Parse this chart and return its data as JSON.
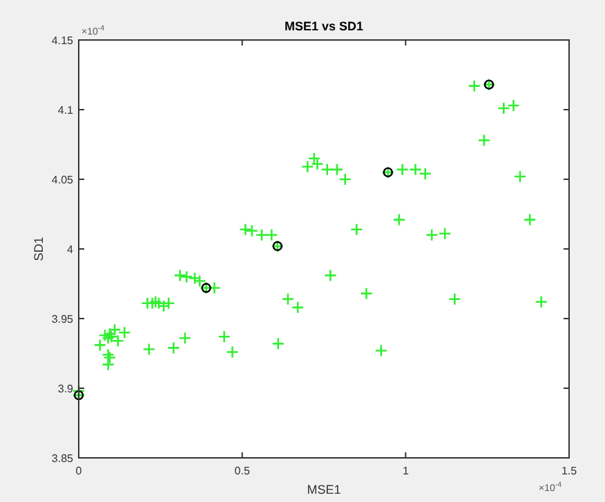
{
  "chart_data": {
    "type": "scatter",
    "title": "MSE1 vs SD1",
    "xlabel": "MSE1",
    "ylabel": "SD1",
    "xlim": [
      0,
      1.5
    ],
    "xticks": [
      0,
      0.5,
      1,
      1.5
    ],
    "ylim": [
      3.85,
      4.15
    ],
    "yticks": [
      3.85,
      3.9,
      3.95,
      4,
      4.05,
      4.1,
      4.15
    ],
    "grid": false,
    "annotations": [
      "×10$^{-4}$",
      "×10$^{-4}$"
    ],
    "series": [
      {
        "color": "#33ee33",
        "marker": "cross",
        "x": [
          1.21,
          1.255,
          1.3,
          1.33,
          1.24,
          0.7,
          0.72,
          0.73,
          0.76,
          0.79,
          0.815,
          0.946,
          0.99,
          1.03,
          1.06,
          1.35,
          0.98,
          1.38,
          0.85,
          1.08,
          1.12,
          0.51,
          0.53,
          0.56,
          0.59,
          0.608,
          0.31,
          0.33,
          0.355,
          0.37,
          0.39,
          0.415,
          0.77,
          0.88,
          0.64,
          0.67,
          1.15,
          1.415,
          0.21,
          0.225,
          0.235,
          0.245,
          0.26,
          0.275,
          0.065,
          0.08,
          0.09,
          0.095,
          0.1,
          0.11,
          0.12,
          0.14,
          0.09,
          0.095,
          0.09,
          0.215,
          0.29,
          0.325,
          0.445,
          0.47,
          0.61,
          0.925,
          0.0,
          0.0
        ],
        "values": [
          4.117,
          4.118,
          4.101,
          4.103,
          4.078,
          4.059,
          4.065,
          4.061,
          4.057,
          4.057,
          4.05,
          4.055,
          4.057,
          4.057,
          4.054,
          4.052,
          4.021,
          4.021,
          4.014,
          4.01,
          4.011,
          4.014,
          4.013,
          4.01,
          4.01,
          4.002,
          3.981,
          3.98,
          3.979,
          3.977,
          3.972,
          3.972,
          3.981,
          3.968,
          3.964,
          3.958,
          3.964,
          3.962,
          3.961,
          3.961,
          3.962,
          3.961,
          3.959,
          3.961,
          3.931,
          3.938,
          3.936,
          3.939,
          3.937,
          3.942,
          3.934,
          3.94,
          3.924,
          3.922,
          3.917,
          3.928,
          3.929,
          3.936,
          3.937,
          3.926,
          3.932,
          3.927,
          3.898,
          3.895
        ]
      },
      {
        "color": "#000000",
        "marker": "circle",
        "x": [
          0.0,
          0.39,
          0.608,
          0.946,
          1.255
        ],
        "values": [
          3.895,
          3.972,
          4.002,
          4.055,
          4.118
        ]
      }
    ]
  }
}
